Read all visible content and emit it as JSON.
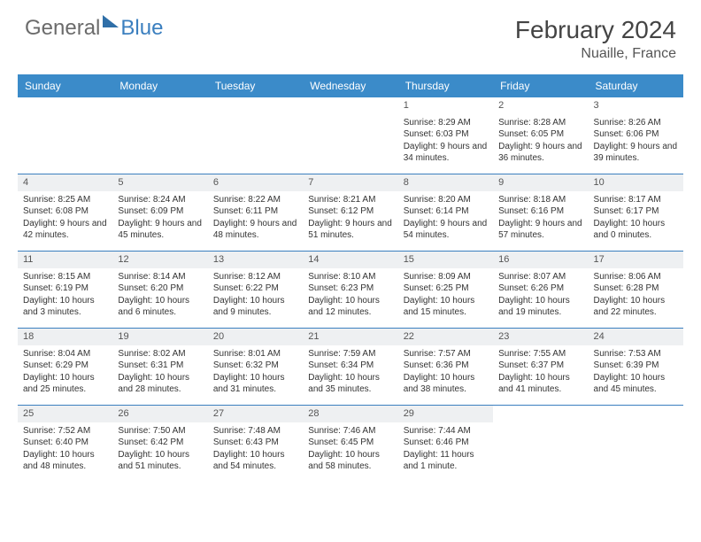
{
  "brand": {
    "part1": "General",
    "part2": "Blue"
  },
  "title": "February 2024",
  "location": "Nuaille, France",
  "header_bg": "#3b8bc9",
  "border_color": "#3b7fbf",
  "daynum_bg": "#eef0f2",
  "days": [
    "Sunday",
    "Monday",
    "Tuesday",
    "Wednesday",
    "Thursday",
    "Friday",
    "Saturday"
  ],
  "weeks": [
    [
      null,
      null,
      null,
      null,
      {
        "n": "1",
        "sr": "8:29 AM",
        "ss": "6:03 PM",
        "dl": "9 hours and 34 minutes."
      },
      {
        "n": "2",
        "sr": "8:28 AM",
        "ss": "6:05 PM",
        "dl": "9 hours and 36 minutes."
      },
      {
        "n": "3",
        "sr": "8:26 AM",
        "ss": "6:06 PM",
        "dl": "9 hours and 39 minutes."
      }
    ],
    [
      {
        "n": "4",
        "sr": "8:25 AM",
        "ss": "6:08 PM",
        "dl": "9 hours and 42 minutes."
      },
      {
        "n": "5",
        "sr": "8:24 AM",
        "ss": "6:09 PM",
        "dl": "9 hours and 45 minutes."
      },
      {
        "n": "6",
        "sr": "8:22 AM",
        "ss": "6:11 PM",
        "dl": "9 hours and 48 minutes."
      },
      {
        "n": "7",
        "sr": "8:21 AM",
        "ss": "6:12 PM",
        "dl": "9 hours and 51 minutes."
      },
      {
        "n": "8",
        "sr": "8:20 AM",
        "ss": "6:14 PM",
        "dl": "9 hours and 54 minutes."
      },
      {
        "n": "9",
        "sr": "8:18 AM",
        "ss": "6:16 PM",
        "dl": "9 hours and 57 minutes."
      },
      {
        "n": "10",
        "sr": "8:17 AM",
        "ss": "6:17 PM",
        "dl": "10 hours and 0 minutes."
      }
    ],
    [
      {
        "n": "11",
        "sr": "8:15 AM",
        "ss": "6:19 PM",
        "dl": "10 hours and 3 minutes."
      },
      {
        "n": "12",
        "sr": "8:14 AM",
        "ss": "6:20 PM",
        "dl": "10 hours and 6 minutes."
      },
      {
        "n": "13",
        "sr": "8:12 AM",
        "ss": "6:22 PM",
        "dl": "10 hours and 9 minutes."
      },
      {
        "n": "14",
        "sr": "8:10 AM",
        "ss": "6:23 PM",
        "dl": "10 hours and 12 minutes."
      },
      {
        "n": "15",
        "sr": "8:09 AM",
        "ss": "6:25 PM",
        "dl": "10 hours and 15 minutes."
      },
      {
        "n": "16",
        "sr": "8:07 AM",
        "ss": "6:26 PM",
        "dl": "10 hours and 19 minutes."
      },
      {
        "n": "17",
        "sr": "8:06 AM",
        "ss": "6:28 PM",
        "dl": "10 hours and 22 minutes."
      }
    ],
    [
      {
        "n": "18",
        "sr": "8:04 AM",
        "ss": "6:29 PM",
        "dl": "10 hours and 25 minutes."
      },
      {
        "n": "19",
        "sr": "8:02 AM",
        "ss": "6:31 PM",
        "dl": "10 hours and 28 minutes."
      },
      {
        "n": "20",
        "sr": "8:01 AM",
        "ss": "6:32 PM",
        "dl": "10 hours and 31 minutes."
      },
      {
        "n": "21",
        "sr": "7:59 AM",
        "ss": "6:34 PM",
        "dl": "10 hours and 35 minutes."
      },
      {
        "n": "22",
        "sr": "7:57 AM",
        "ss": "6:36 PM",
        "dl": "10 hours and 38 minutes."
      },
      {
        "n": "23",
        "sr": "7:55 AM",
        "ss": "6:37 PM",
        "dl": "10 hours and 41 minutes."
      },
      {
        "n": "24",
        "sr": "7:53 AM",
        "ss": "6:39 PM",
        "dl": "10 hours and 45 minutes."
      }
    ],
    [
      {
        "n": "25",
        "sr": "7:52 AM",
        "ss": "6:40 PM",
        "dl": "10 hours and 48 minutes."
      },
      {
        "n": "26",
        "sr": "7:50 AM",
        "ss": "6:42 PM",
        "dl": "10 hours and 51 minutes."
      },
      {
        "n": "27",
        "sr": "7:48 AM",
        "ss": "6:43 PM",
        "dl": "10 hours and 54 minutes."
      },
      {
        "n": "28",
        "sr": "7:46 AM",
        "ss": "6:45 PM",
        "dl": "10 hours and 58 minutes."
      },
      {
        "n": "29",
        "sr": "7:44 AM",
        "ss": "6:46 PM",
        "dl": "11 hours and 1 minute."
      },
      null,
      null
    ]
  ],
  "labels": {
    "sunrise": "Sunrise:",
    "sunset": "Sunset:",
    "daylight": "Daylight:"
  }
}
